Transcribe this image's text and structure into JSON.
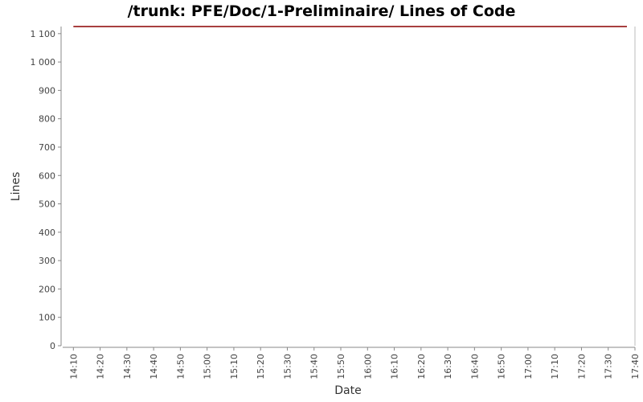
{
  "chart_data": {
    "type": "line",
    "title": "/trunk: PFE/Doc/1-Preliminaire/ Lines of Code",
    "xlabel": "Date",
    "ylabel": "Lines",
    "x_ticks": [
      "14:10",
      "14:20",
      "14:30",
      "14:40",
      "14:50",
      "15:00",
      "15:10",
      "15:20",
      "15:30",
      "15:40",
      "15:50",
      "16:00",
      "16:10",
      "16:20",
      "16:30",
      "16:40",
      "16:50",
      "17:00",
      "17:10",
      "17:20",
      "17:30",
      "17:40"
    ],
    "y_ticks": [
      0,
      100,
      200,
      300,
      400,
      500,
      600,
      700,
      800,
      900,
      1000,
      1100
    ],
    "y_tick_labels": [
      "0",
      "100",
      "200",
      "300",
      "400",
      "500",
      "600",
      "700",
      "800",
      "900",
      "1 000",
      "1 100"
    ],
    "ylim": [
      0,
      1125
    ],
    "xlim": [
      "14:06",
      "17:40"
    ],
    "grid": false,
    "series": [
      {
        "color": "#8b0000",
        "points": [
          {
            "x": "14:10",
            "y": 1125
          },
          {
            "x": "17:37",
            "y": 1125
          }
        ]
      }
    ]
  }
}
